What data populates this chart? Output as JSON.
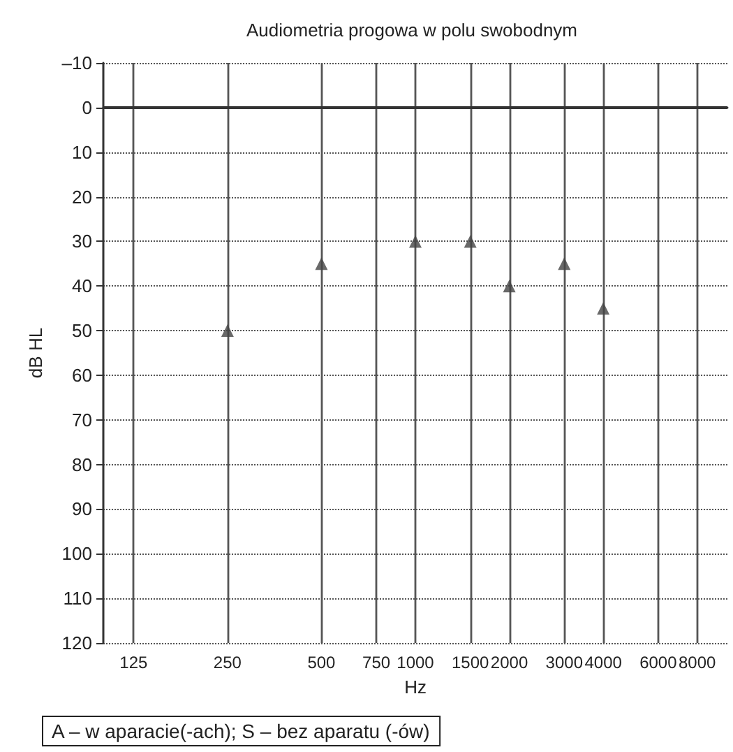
{
  "chart_data": {
    "type": "scatter",
    "title": "Audiometria progowa w polu swobodnym",
    "xlabel": "Hz",
    "ylabel": "dB HL",
    "annotations": [
      "A – w aparacie(-ach); S – bez aparatu (-ów)"
    ],
    "x": [
      250,
      500,
      1000,
      1500,
      2000,
      3000,
      4000
    ],
    "series": [
      {
        "color": "#444444",
        "values": [
          50,
          35,
          30,
          30,
          40,
          35,
          45
        ]
      }
    ],
    "log": "x",
    "xlim": [
      100,
      10000
    ],
    "xticks": [
      125,
      250,
      500,
      750,
      1000,
      1500,
      2000,
      3000,
      4000,
      6000,
      8000
    ],
    "ylim": [
      120,
      -10
    ],
    "yticks": [
      {
        "value": -10,
        "label": "–10"
      },
      0,
      10,
      20,
      30,
      40,
      50,
      60,
      70,
      80,
      90,
      100,
      110,
      120
    ],
    "ref_lines": [
      {
        "axis": "y",
        "value": 0,
        "color": "#333333"
      }
    ],
    "grid": true,
    "marker": "triangle"
  }
}
